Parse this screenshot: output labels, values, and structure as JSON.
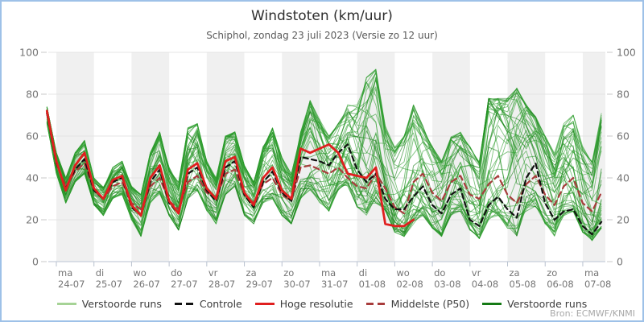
{
  "header": {
    "title": "Windstoten (km/uur)",
    "subtitle": "Schiphol, zondag 23 juli 2023 (Versie zo 12 uur)"
  },
  "source": "Bron: ECMWF/KNMI",
  "colors": {
    "border_blue": "#9ec1e8",
    "band_gray": "#f0f0f0",
    "gridline": "#e4e4e4",
    "axis_line": "#c6cedb",
    "tick": "#b9c2cf",
    "label_gray": "#757575",
    "ensemble_green": "#2f9e2f",
    "ensemble_dark_green": "#117a11",
    "legend_light_green": "#a6d396",
    "legend_dark_green": "#157a15",
    "control_black": "#111111",
    "hires_red": "#e01f1f",
    "p50_dark_red": "#a83c3c"
  },
  "legend": [
    {
      "label": "Verstoorde runs",
      "color": "#a6d396",
      "dashed": false
    },
    {
      "label": "Controle",
      "color": "#111111",
      "dashed": true
    },
    {
      "label": "Hoge resolutie",
      "color": "#e01f1f",
      "dashed": false
    },
    {
      "label": "Middelste (P50)",
      "color": "#a83c3c",
      "dashed": true
    },
    {
      "label": "Verstoorde runs",
      "color": "#157a15",
      "dashed": false
    }
  ],
  "chart_data": {
    "type": "line",
    "title": "Windstoten (km/uur)",
    "subtitle": "Schiphol, zondag 23 juli 2023 (Versie zo 12 uur)",
    "ylabel": "",
    "ylim": [
      0,
      100
    ],
    "y_ticks": [
      0,
      20,
      40,
      60,
      80,
      100
    ],
    "time_step_hours": 6,
    "start_time": "23-07 18:00",
    "end_time": "07-08 12:00",
    "x_ticks": [
      {
        "day": "ma",
        "date": "24-07"
      },
      {
        "day": "di",
        "date": "25-07"
      },
      {
        "day": "wo",
        "date": "26-07"
      },
      {
        "day": "do",
        "date": "27-07"
      },
      {
        "day": "vr",
        "date": "28-07"
      },
      {
        "day": "za",
        "date": "29-07"
      },
      {
        "day": "zo",
        "date": "30-07"
      },
      {
        "day": "ma",
        "date": "31-07"
      },
      {
        "day": "di",
        "date": "01-08"
      },
      {
        "day": "wo",
        "date": "02-08"
      },
      {
        "day": "do",
        "date": "03-08"
      },
      {
        "day": "vr",
        "date": "04-08"
      },
      {
        "day": "za",
        "date": "05-08"
      },
      {
        "day": "zo",
        "date": "06-08"
      },
      {
        "day": "ma",
        "date": "07-08"
      }
    ],
    "series": [
      {
        "name": "Controle",
        "style": "black-dashed",
        "values": [
          71,
          47,
          35,
          44,
          49,
          34,
          30,
          38,
          40,
          26,
          22,
          38,
          44,
          28,
          23,
          42,
          45,
          34,
          29,
          45,
          48,
          32,
          26,
          38,
          43,
          33,
          29,
          50,
          49,
          48,
          46,
          52,
          56,
          44,
          38,
          42,
          30,
          25,
          25,
          31,
          36,
          27,
          23,
          32,
          35,
          20,
          17,
          27,
          31,
          25,
          21,
          40,
          47,
          28,
          20,
          24,
          25,
          17,
          13,
          19
        ]
      },
      {
        "name": "Hoge resolutie",
        "style": "red-solid",
        "values": [
          72,
          48,
          34,
          46,
          52,
          35,
          30,
          39,
          41,
          27,
          22,
          40,
          46,
          29,
          23,
          44,
          47,
          35,
          30,
          48,
          50,
          33,
          27,
          40,
          45,
          34,
          30,
          54,
          52,
          54,
          56,
          52,
          42,
          41,
          40,
          45,
          18,
          17,
          17,
          20
        ]
      },
      {
        "name": "Middelste (P50)",
        "style": "darkred-dashed",
        "values": [
          71,
          47,
          36,
          43,
          47,
          34,
          30,
          36,
          38,
          28,
          25,
          36,
          40,
          29,
          25,
          38,
          41,
          33,
          30,
          42,
          44,
          32,
          28,
          37,
          40,
          32,
          29,
          45,
          46,
          44,
          42,
          45,
          40,
          36,
          35,
          42,
          35,
          26,
          23,
          38,
          42,
          33,
          29,
          38,
          41,
          32,
          30,
          37,
          41,
          32,
          28,
          37,
          41,
          32,
          27,
          36,
          40,
          28,
          24,
          33
        ]
      }
    ],
    "ensemble": {
      "name": "Verstoorde runs",
      "member_count": 50,
      "envelope_min": [
        66,
        42,
        28,
        38,
        42,
        27,
        22,
        30,
        32,
        20,
        12,
        28,
        32,
        22,
        15,
        30,
        34,
        24,
        18,
        32,
        36,
        22,
        18,
        28,
        30,
        22,
        18,
        30,
        34,
        28,
        24,
        34,
        36,
        26,
        22,
        28,
        24,
        14,
        12,
        18,
        22,
        16,
        12,
        22,
        24,
        15,
        11,
        20,
        22,
        16,
        12,
        24,
        26,
        18,
        12,
        22,
        24,
        14,
        10,
        16
      ],
      "envelope_max": [
        74,
        52,
        40,
        52,
        58,
        40,
        36,
        45,
        48,
        36,
        32,
        52,
        62,
        45,
        38,
        64,
        66,
        48,
        40,
        60,
        62,
        46,
        38,
        55,
        64,
        50,
        42,
        62,
        77,
        68,
        60,
        66,
        75,
        75,
        88,
        92,
        65,
        55,
        60,
        75,
        65,
        55,
        48,
        60,
        62,
        55,
        48,
        78,
        78,
        78,
        83,
        75,
        70,
        60,
        52,
        66,
        70,
        55,
        48,
        71
      ]
    }
  }
}
